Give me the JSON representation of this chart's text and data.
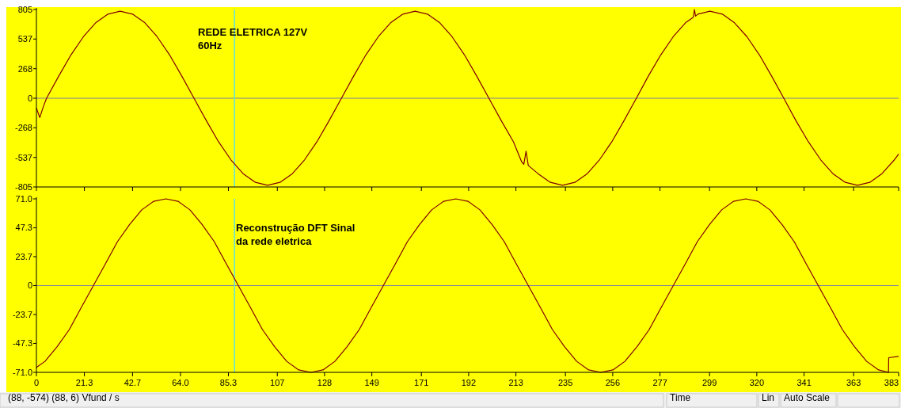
{
  "chart_data": [
    {
      "type": "line",
      "xlim": [
        0,
        383
      ],
      "ylim": [
        -805,
        805
      ],
      "tick_labels": "y",
      "xticks": [
        0,
        21.3,
        42.7,
        64,
        85.3,
        107,
        128,
        149,
        171,
        192,
        213,
        235,
        256,
        277,
        299,
        320,
        341,
        363,
        383
      ],
      "yticks": [
        805,
        537,
        268,
        0,
        -268,
        -537,
        -805
      ],
      "ref_lines": [
        {
          "axis": "y",
          "value": 0,
          "color": "#8080a0"
        },
        {
          "axis": "x",
          "value": 88,
          "color": "#66e0e0"
        }
      ],
      "annotations": [
        "REDE ELETRICA 127V\n60Hz"
      ],
      "series": [
        {
          "color": "#800000",
          "x": [
            0,
            1.5,
            3,
            4.5,
            10.0,
            15.4,
            20.9,
            26.3,
            31.8,
            37.2,
            42.7,
            48.2,
            53.6,
            59.1,
            64.5,
            70.0,
            75.5,
            80.9,
            86.4,
            91.8,
            97.3,
            102.7,
            108.2,
            113.7,
            119.1,
            124.6,
            130.0,
            135.5,
            141.0,
            146.4,
            151.9,
            157.3,
            162.8,
            168.2,
            173.7,
            179.2,
            184.6,
            190.1,
            195.5,
            201.0,
            206.5,
            211.9,
            215.5,
            216.5,
            217.5,
            218.5,
            222.8,
            228.3,
            233.7,
            239.2,
            244.7,
            250.1,
            255.6,
            261.0,
            266.5,
            271.9,
            277.4,
            282.9,
            288.3,
            291.8,
            292.3,
            292.8,
            293.8,
            299.2,
            304.7,
            310.1,
            315.6,
            321.1,
            326.5,
            332.0,
            337.4,
            342.9,
            348.4,
            353.8,
            359.3,
            364.7,
            370.2,
            375.6,
            381.1,
            383
          ],
          "values": [
            -90,
            -175,
            -80,
            0,
            204,
            395,
            559,
            684,
            763,
            790,
            763,
            684,
            559,
            395,
            204,
            0,
            -204,
            -395,
            -559,
            -684,
            -763,
            -790,
            -763,
            -684,
            -559,
            -395,
            -204,
            0,
            204,
            395,
            559,
            684,
            763,
            790,
            763,
            684,
            559,
            395,
            204,
            0,
            -204,
            -395,
            -575,
            -600,
            -480,
            -610,
            -684,
            -763,
            -790,
            -763,
            -684,
            -559,
            -395,
            -204,
            0,
            204,
            395,
            559,
            684,
            735,
            805,
            745,
            763,
            790,
            763,
            684,
            559,
            395,
            204,
            0,
            -204,
            -395,
            -559,
            -684,
            -763,
            -790,
            -763,
            -684,
            -559,
            -506
          ]
        }
      ]
    },
    {
      "type": "line",
      "xlim": [
        0,
        383
      ],
      "ylim": [
        -71,
        71
      ],
      "xticks": [
        0,
        21.3,
        42.7,
        {
          "value": 64,
          "label": "64.0"
        },
        85.3,
        107,
        128,
        149,
        171,
        192,
        213,
        235,
        256,
        277,
        299,
        320,
        341,
        363,
        383
      ],
      "yticks": [
        {
          "value": 71,
          "label": "71.0"
        },
        47.3,
        23.7,
        0,
        -23.7,
        -47.3,
        {
          "value": -71,
          "label": "-71.0"
        }
      ],
      "ref_lines": [
        {
          "axis": "y",
          "value": 0,
          "color": "#8080a0"
        },
        {
          "axis": "x",
          "value": 88,
          "color": "#66e0e0"
        }
      ],
      "annotations": [
        "Reconstrução DFT Sinal\nda rede eletrica",
        "(88, -574) (88, 6)  Vfund / s",
        "Time",
        "Lin",
        "Auto Scale"
      ],
      "series": [
        {
          "color": "#800000",
          "x": [
            0,
            3.8,
            9.2,
            14.6,
            19.9,
            25.3,
            30.7,
            36.0,
            41.4,
            46.8,
            52.1,
            57.5,
            62.9,
            68.2,
            73.6,
            79.0,
            84.3,
            89.7,
            95.1,
            100.4,
            105.8,
            111.2,
            116.5,
            121.9,
            127.3,
            132.6,
            138.0,
            143.4,
            148.7,
            154.1,
            159.5,
            164.8,
            170.2,
            175.6,
            180.9,
            186.3,
            191.7,
            197.0,
            202.4,
            207.8,
            213.1,
            218.5,
            223.9,
            229.2,
            234.6,
            240.0,
            245.3,
            250.7,
            256.1,
            261.4,
            266.8,
            272.2,
            277.5,
            282.9,
            288.3,
            293.6,
            299.0,
            304.4,
            309.7,
            315.1,
            320.5,
            325.8,
            331.2,
            336.6,
            341.9,
            347.3,
            352.7,
            358.0,
            363.4,
            368.8,
            374.1,
            378.5,
            378.6,
            383
          ],
          "values": [
            -67,
            -62,
            -50,
            -36,
            -18,
            0,
            18,
            36,
            50,
            62,
            69,
            71,
            69,
            62,
            50,
            36,
            18,
            0,
            -18,
            -36,
            -50,
            -62,
            -69,
            -71,
            -69,
            -62,
            -50,
            -36,
            -18,
            0,
            18,
            36,
            50,
            62,
            69,
            71,
            69,
            62,
            50,
            36,
            18,
            0,
            -18,
            -36,
            -50,
            -62,
            -69,
            -71,
            -69,
            -62,
            -50,
            -36,
            -18,
            0,
            18,
            36,
            50,
            62,
            69,
            71,
            69,
            62,
            50,
            36,
            18,
            0,
            -18,
            -36,
            -50,
            -62,
            -69,
            -71,
            -59,
            -58
          ]
        }
      ]
    }
  ]
}
